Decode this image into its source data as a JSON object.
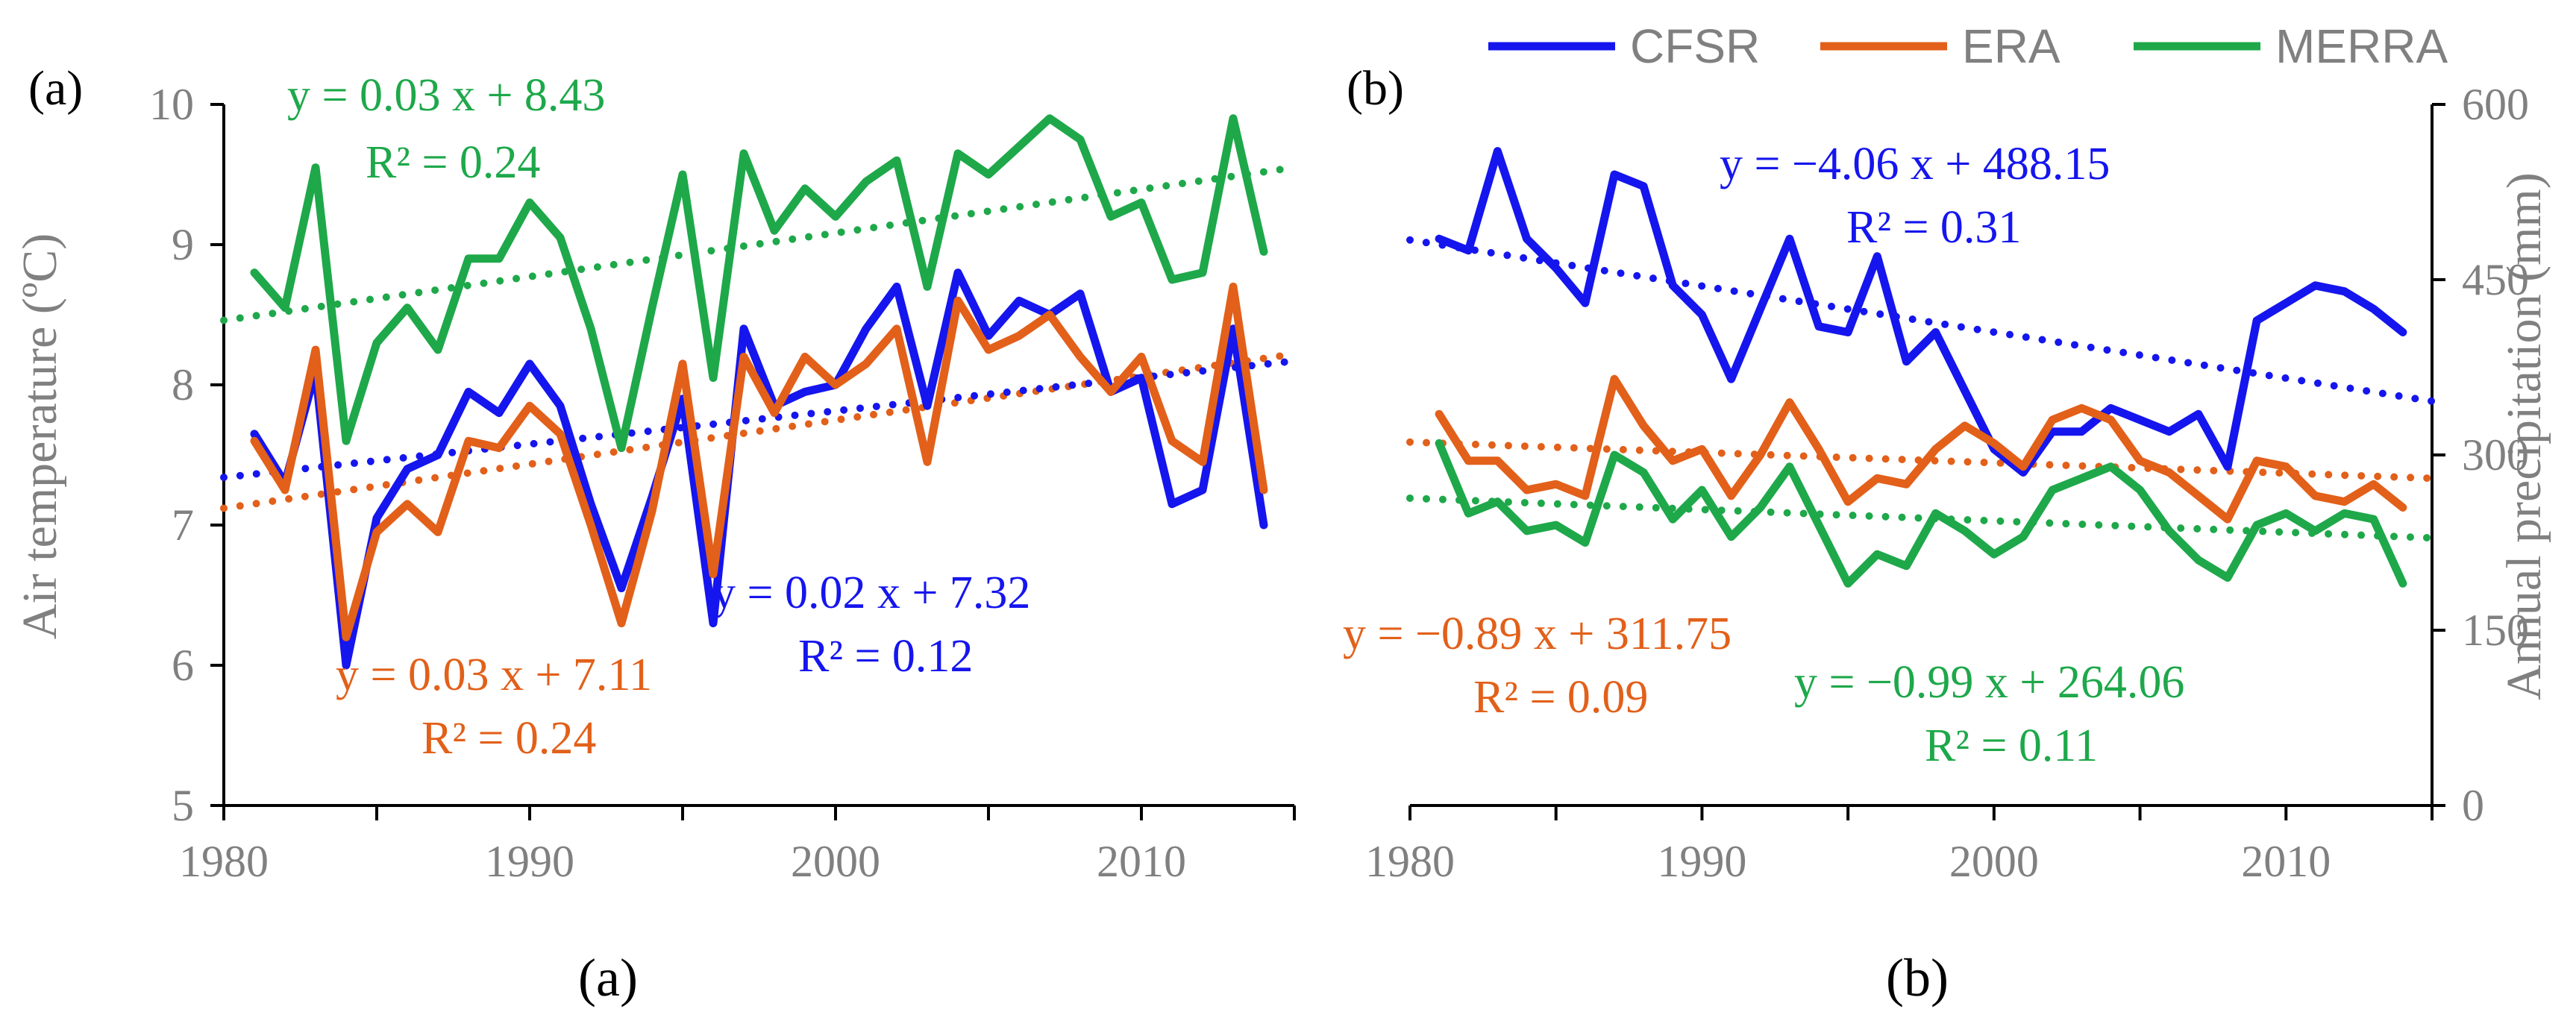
{
  "colors": {
    "CFSR": "#1515ee",
    "ERA": "#e2601a",
    "MERRA": "#1ea84a",
    "axis": "#000000",
    "text": "#808080"
  },
  "legend": {
    "placement": "top-right",
    "items": [
      "CFSR",
      "ERA",
      "MERRA"
    ]
  },
  "chart_data": [
    {
      "type": "line",
      "panel_label": "(a)",
      "caption": "(a)",
      "ylabel": "Air temperature (ºC)",
      "xlim": [
        1980,
        2015
      ],
      "ylim": [
        5,
        10
      ],
      "xticks": [
        1980,
        1990,
        2000,
        2010
      ],
      "yticks": [
        5,
        6,
        7,
        8,
        9,
        10
      ],
      "x": [
        1981,
        1982,
        1983,
        1984,
        1985,
        1986,
        1987,
        1988,
        1989,
        1990,
        1991,
        1992,
        1993,
        1994,
        1995,
        1996,
        1997,
        1998,
        1999,
        2000,
        2001,
        2002,
        2003,
        2004,
        2005,
        2006,
        2007,
        2008,
        2009,
        2010,
        2011,
        2012,
        2013,
        2014
      ],
      "series": [
        {
          "name": "CFSR",
          "values": [
            7.65,
            7.3,
            8.1,
            6.0,
            7.05,
            7.4,
            7.5,
            7.95,
            7.8,
            8.15,
            7.85,
            7.15,
            6.55,
            7.2,
            7.9,
            6.3,
            8.4,
            7.85,
            7.95,
            8.0,
            8.4,
            8.7,
            7.85,
            8.8,
            8.35,
            8.6,
            8.5,
            8.65,
            7.95,
            8.05,
            7.15,
            7.25,
            8.4,
            7.0
          ]
        },
        {
          "name": "ERA",
          "values": [
            7.6,
            7.25,
            8.25,
            6.2,
            6.95,
            7.15,
            6.95,
            7.6,
            7.55,
            7.85,
            7.65,
            7.0,
            6.3,
            7.1,
            8.15,
            6.65,
            8.2,
            7.8,
            8.2,
            8.0,
            8.15,
            8.4,
            7.45,
            8.6,
            8.25,
            8.35,
            8.5,
            8.2,
            7.95,
            8.2,
            7.6,
            7.45,
            8.7,
            7.25
          ]
        },
        {
          "name": "MERRA",
          "values": [
            8.8,
            8.55,
            9.55,
            7.6,
            8.3,
            8.55,
            8.25,
            8.9,
            8.9,
            9.3,
            9.05,
            8.4,
            7.55,
            8.55,
            9.5,
            8.05,
            9.65,
            9.1,
            9.4,
            9.2,
            9.45,
            9.6,
            8.7,
            9.65,
            9.5,
            9.7,
            9.9,
            9.75,
            9.2,
            9.3,
            8.75,
            8.8,
            9.9,
            8.95
          ]
        }
      ],
      "trendlines": [
        {
          "series": "MERRA",
          "x_range": [
            1980,
            2015
          ],
          "y_range": [
            8.46,
            9.55
          ],
          "equation": "y = 0.03 x + 8.43",
          "r2": "R² = 0.24"
        },
        {
          "series": "ERA",
          "x_range": [
            1980,
            2015
          ],
          "y_range": [
            7.12,
            8.22
          ],
          "equation": "y = 0.03 x + 7.11",
          "r2": "R² = 0.24"
        },
        {
          "series": "CFSR",
          "x_range": [
            1980,
            2015
          ],
          "y_range": [
            7.34,
            8.17
          ],
          "equation": "y = 0.02 x + 7.32",
          "r2": "R² = 0.12"
        }
      ]
    },
    {
      "type": "line",
      "panel_label": "(b)",
      "caption": "(b)",
      "ylabel": "Annual precipitation (mm)",
      "xlim": [
        1980,
        2015
      ],
      "ylim": [
        0,
        600
      ],
      "xticks": [
        1980,
        1990,
        2000,
        2010
      ],
      "yticks": [
        0,
        150,
        300,
        450,
        600
      ],
      "x": [
        1981,
        1982,
        1983,
        1984,
        1985,
        1986,
        1987,
        1988,
        1989,
        1990,
        1991,
        1992,
        1993,
        1994,
        1995,
        1996,
        1997,
        1998,
        1999,
        2000,
        2001,
        2002,
        2003,
        2004,
        2005,
        2006,
        2007,
        2008,
        2009,
        2010,
        2011,
        2012,
        2013,
        2014
      ],
      "series": [
        {
          "name": "CFSR",
          "values": [
            485,
            475,
            560,
            485,
            460,
            430,
            540,
            530,
            445,
            420,
            365,
            425,
            485,
            410,
            405,
            470,
            380,
            405,
            355,
            305,
            285,
            320,
            320,
            340,
            330,
            320,
            335,
            290,
            415,
            430,
            445,
            440,
            425,
            405
          ]
        },
        {
          "name": "ERA",
          "values": [
            335,
            295,
            295,
            270,
            275,
            265,
            365,
            325,
            295,
            305,
            265,
            300,
            345,
            305,
            260,
            280,
            275,
            305,
            325,
            310,
            290,
            330,
            340,
            330,
            295,
            285,
            265,
            245,
            295,
            290,
            265,
            260,
            275,
            255
          ]
        },
        {
          "name": "MERRA",
          "values": [
            310,
            250,
            260,
            235,
            240,
            225,
            300,
            285,
            245,
            270,
            230,
            255,
            290,
            240,
            190,
            215,
            205,
            250,
            235,
            215,
            230,
            270,
            280,
            290,
            270,
            235,
            210,
            195,
            240,
            250,
            235,
            250,
            245,
            190
          ]
        }
      ],
      "trendlines": [
        {
          "series": "CFSR",
          "x_range": [
            1980,
            2015
          ],
          "y_range": [
            484,
            346
          ],
          "equation": "y = −4.06 x + 488.15",
          "r2": "R² = 0.31"
        },
        {
          "series": "ERA",
          "x_range": [
            1980,
            2015
          ],
          "y_range": [
            311,
            280
          ],
          "equation": "y = −0.89 x + 311.75",
          "r2": "R² = 0.09"
        },
        {
          "series": "MERRA",
          "x_range": [
            1980,
            2015
          ],
          "y_range": [
            263,
            229
          ],
          "equation": "y = −0.99 x + 264.06",
          "r2": "R² = 0.11"
        }
      ]
    }
  ]
}
